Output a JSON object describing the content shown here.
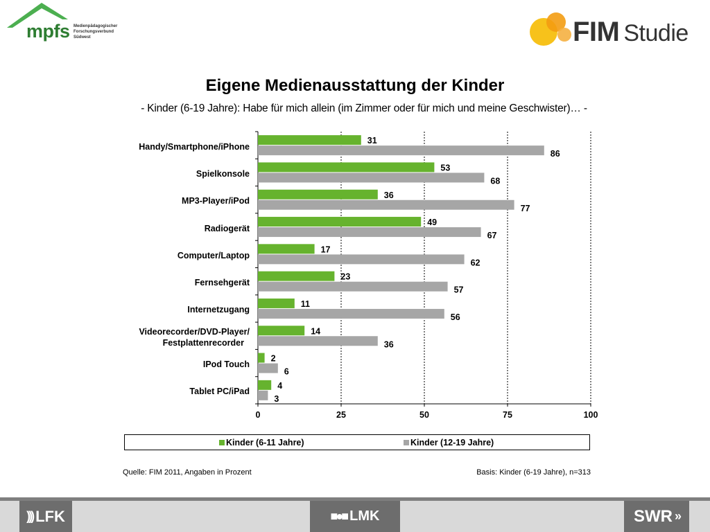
{
  "header": {
    "mpfs": {
      "name": "mpfs",
      "subtitle_lines": [
        "Medienpädagogischer",
        "Forschungsverbund",
        "Südwest"
      ]
    },
    "fim": {
      "bold": "FIM",
      "light": "Studie"
    }
  },
  "title": "Eigene Medienausstattung der Kinder",
  "subtitle": "- Kinder (6-19 Jahre): Habe für mich allein (im Zimmer oder für mich und meine Geschwister)… -",
  "colors": {
    "green": "#66b32e",
    "gray": "#a6a6a6"
  },
  "chart_data": {
    "type": "bar",
    "orientation": "horizontal",
    "categories": [
      "Handy/Smartphone/iPhone",
      "Spielkonsole",
      "MP3-Player/iPod",
      "Radiogerät",
      "Computer/Laptop",
      "Fernsehgerät",
      "Internetzugang",
      "Videorecorder/DVD-Player/\nFestplattenrecorder",
      "IPod Touch",
      "Tablet PC/iPad"
    ],
    "series": [
      {
        "name": "Kinder (6-11 Jahre)",
        "color": "#66b32e",
        "values": [
          31,
          53,
          36,
          49,
          17,
          23,
          11,
          14,
          2,
          4
        ]
      },
      {
        "name": "Kinder (12-19 Jahre)",
        "color": "#a6a6a6",
        "values": [
          86,
          68,
          77,
          67,
          62,
          57,
          56,
          36,
          6,
          3
        ]
      }
    ],
    "xlim": [
      0,
      100
    ],
    "xticks": [
      0,
      25,
      50,
      75,
      100
    ],
    "grid": "vertical dashed",
    "legend": "bottom",
    "data_labels": true
  },
  "legend": {
    "item1": "Kinder (6-11  Jahre)",
    "item2": "Kinder (12-19  Jahre)"
  },
  "source": "Quelle: FIM 2011, Angaben in Prozent",
  "base": "Basis: Kinder (6-19 Jahre), n=313",
  "footer": {
    "lfk": "LFK",
    "lmk": "LMK",
    "swr": "SWR"
  }
}
